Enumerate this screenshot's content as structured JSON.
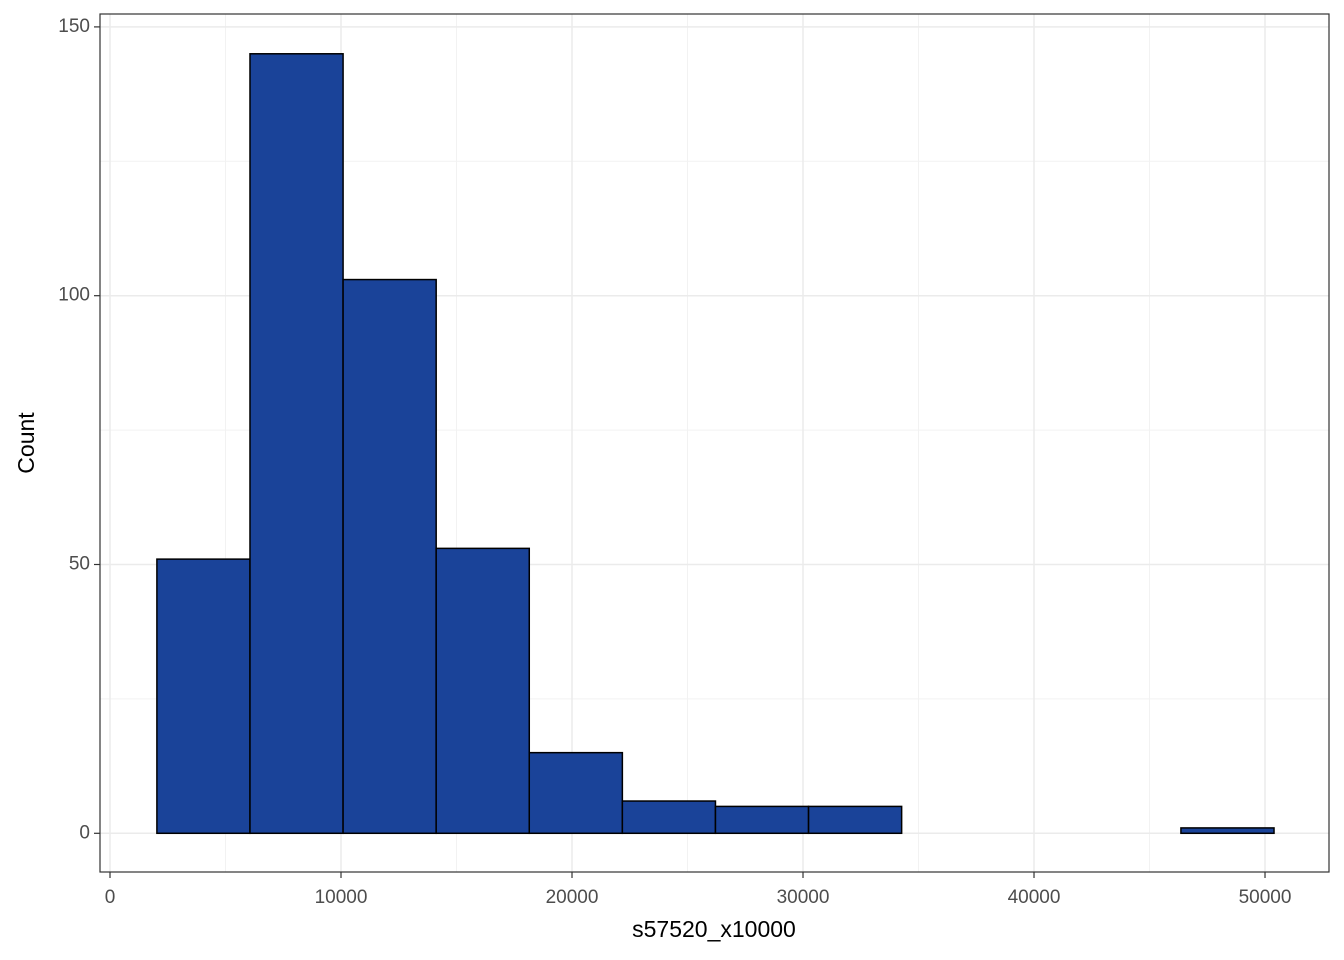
{
  "chart_data": {
    "type": "histogram",
    "x_label": "s57520_x10000",
    "y_label": "Count",
    "bins": [
      2030,
      6060,
      10090,
      14120,
      18150,
      22180,
      26210,
      30240,
      34270,
      38300,
      42330,
      46360,
      50390
    ],
    "counts": [
      51,
      145,
      103,
      53,
      15,
      6,
      5,
      5,
      0,
      0,
      0,
      1
    ],
    "color": "#1a4399",
    "edge_color": "#000000",
    "xlim": [
      -433,
      52770
    ],
    "ylim": [
      -7.2,
      152.4
    ],
    "xticks": [
      0,
      10000,
      20000,
      30000,
      40000,
      50000
    ],
    "yticks": [
      0,
      50,
      100,
      150
    ],
    "x_minor_grid": [
      5000,
      15000,
      25000,
      35000,
      45000
    ],
    "y_minor_grid": [
      25,
      75,
      125
    ],
    "grid": true
  }
}
